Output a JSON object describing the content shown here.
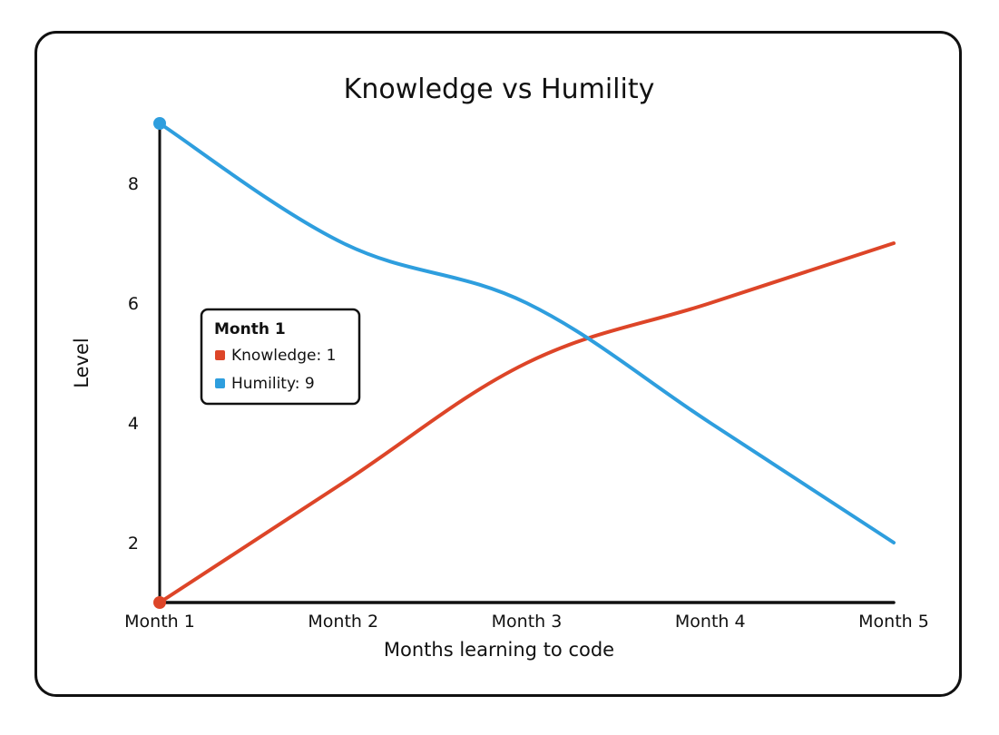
{
  "chart_data": {
    "type": "line",
    "title": "Knowledge vs Humility",
    "xlabel": "Months learning to code",
    "ylabel": "Level",
    "categories": [
      "Month 1",
      "Month 2",
      "Month 3",
      "Month 4",
      "Month 5"
    ],
    "ylim": [
      1,
      9
    ],
    "yticks": [
      "2",
      "4",
      "6",
      "8"
    ],
    "ytick_values": [
      2,
      4,
      6,
      8
    ],
    "grid": false,
    "legend_placement": "upper-left",
    "series": [
      {
        "name": "Knowledge",
        "color": "#dd4528",
        "values": [
          1,
          3,
          5,
          6,
          7
        ]
      },
      {
        "name": "Humility",
        "color": "#2e9ede",
        "values": [
          9,
          7,
          6,
          4,
          2
        ]
      }
    ],
    "tooltip": {
      "title": "Month 1",
      "items": [
        "Knowledge: 1",
        "Humility: 9"
      ]
    }
  }
}
